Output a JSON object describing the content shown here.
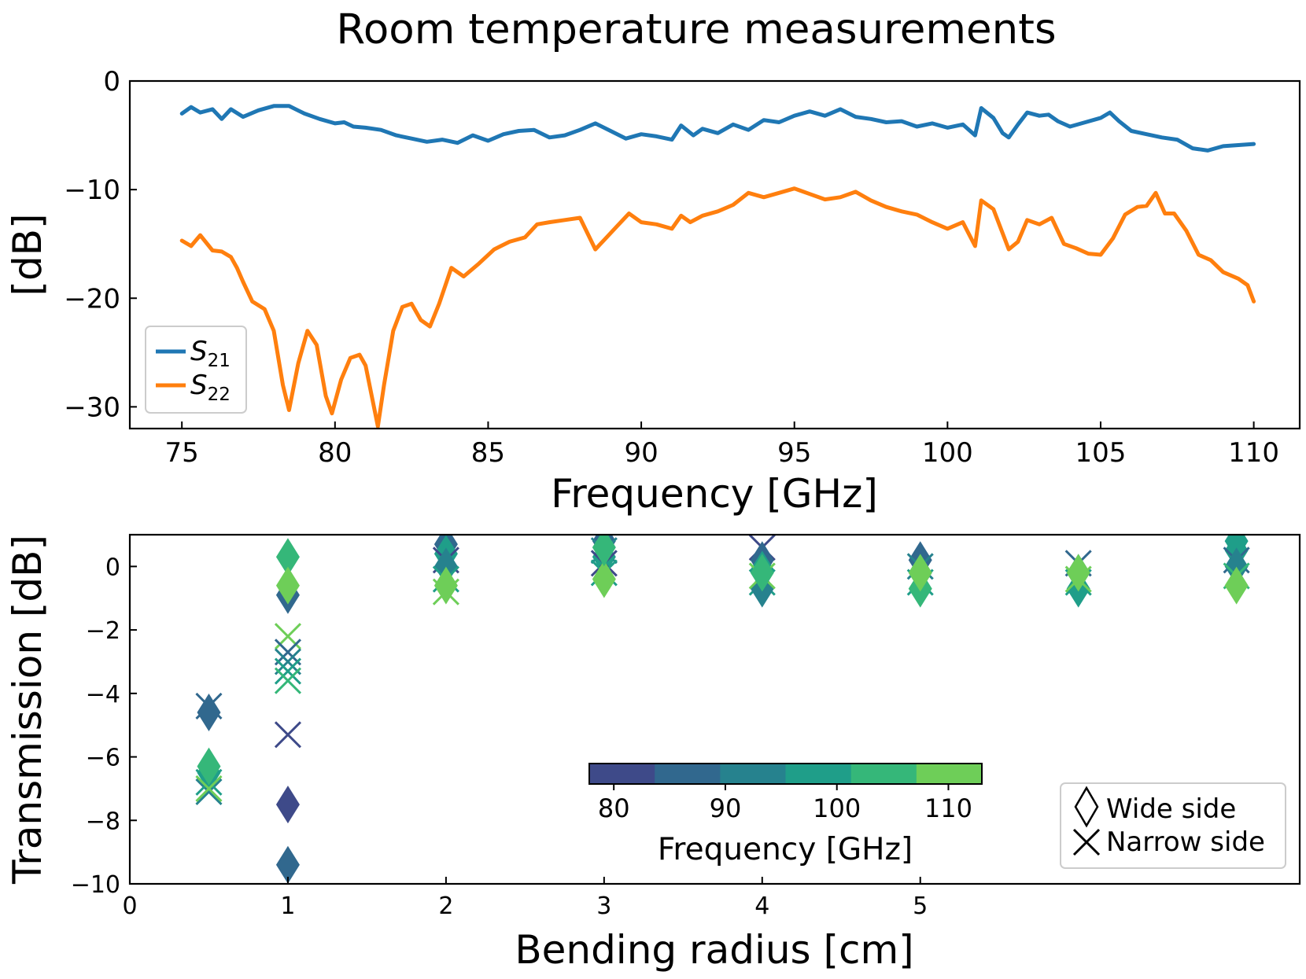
{
  "figure": {
    "title": "Room temperature measurements"
  },
  "chart_data": [
    {
      "type": "line",
      "xlabel": "Frequency [GHz]",
      "ylabel": "[dB]",
      "xlim": [
        73.3,
        111.5
      ],
      "ylim": [
        -32,
        0
      ],
      "xticks": [
        75,
        80,
        85,
        90,
        95,
        100,
        105,
        110
      ],
      "yticks": [
        0,
        -10,
        -20,
        -30
      ],
      "legend": {
        "placement": "lower-left"
      },
      "series": [
        {
          "name": "S21",
          "label_main": "S",
          "label_sub": "21",
          "color": "#1f77b4",
          "points": [
            [
              75,
              -3.0
            ],
            [
              75.3,
              -2.4
            ],
            [
              75.6,
              -2.9
            ],
            [
              76,
              -2.6
            ],
            [
              76.3,
              -3.5
            ],
            [
              76.6,
              -2.6
            ],
            [
              77,
              -3.3
            ],
            [
              77.5,
              -2.7
            ],
            [
              78,
              -2.3
            ],
            [
              78.5,
              -2.3
            ],
            [
              79,
              -3.0
            ],
            [
              79.5,
              -3.5
            ],
            [
              80,
              -3.9
            ],
            [
              80.3,
              -3.8
            ],
            [
              80.6,
              -4.2
            ],
            [
              81,
              -4.3
            ],
            [
              81.5,
              -4.5
            ],
            [
              82,
              -5.0
            ],
            [
              82.5,
              -5.3
            ],
            [
              83,
              -5.6
            ],
            [
              83.5,
              -5.4
            ],
            [
              84,
              -5.7
            ],
            [
              84.5,
              -5.0
            ],
            [
              85,
              -5.5
            ],
            [
              85.5,
              -4.9
            ],
            [
              86,
              -4.6
            ],
            [
              86.5,
              -4.5
            ],
            [
              87,
              -5.2
            ],
            [
              87.5,
              -5.0
            ],
            [
              88,
              -4.5
            ],
            [
              88.5,
              -3.9
            ],
            [
              89,
              -4.6
            ],
            [
              89.5,
              -5.3
            ],
            [
              90,
              -4.9
            ],
            [
              90.5,
              -5.1
            ],
            [
              91,
              -5.4
            ],
            [
              91.3,
              -4.1
            ],
            [
              91.7,
              -5.0
            ],
            [
              92,
              -4.4
            ],
            [
              92.5,
              -4.8
            ],
            [
              93,
              -4.0
            ],
            [
              93.5,
              -4.5
            ],
            [
              94,
              -3.6
            ],
            [
              94.5,
              -3.8
            ],
            [
              95,
              -3.2
            ],
            [
              95.5,
              -2.8
            ],
            [
              96,
              -3.2
            ],
            [
              96.5,
              -2.6
            ],
            [
              97,
              -3.3
            ],
            [
              97.5,
              -3.5
            ],
            [
              98,
              -3.8
            ],
            [
              98.5,
              -3.7
            ],
            [
              99,
              -4.2
            ],
            [
              99.5,
              -3.9
            ],
            [
              100,
              -4.3
            ],
            [
              100.5,
              -4.0
            ],
            [
              100.9,
              -5.0
            ],
            [
              101.1,
              -2.5
            ],
            [
              101.5,
              -3.4
            ],
            [
              101.8,
              -4.8
            ],
            [
              102,
              -5.2
            ],
            [
              102.3,
              -4.0
            ],
            [
              102.6,
              -2.9
            ],
            [
              103,
              -3.2
            ],
            [
              103.3,
              -3.1
            ],
            [
              103.6,
              -3.7
            ],
            [
              104,
              -4.2
            ],
            [
              104.5,
              -3.8
            ],
            [
              105,
              -3.4
            ],
            [
              105.3,
              -2.9
            ],
            [
              105.6,
              -3.7
            ],
            [
              106,
              -4.6
            ],
            [
              106.5,
              -4.9
            ],
            [
              107,
              -5.2
            ],
            [
              107.5,
              -5.4
            ],
            [
              108,
              -6.2
            ],
            [
              108.5,
              -6.4
            ],
            [
              109,
              -6.0
            ],
            [
              109.5,
              -5.9
            ],
            [
              110,
              -5.8
            ]
          ]
        },
        {
          "name": "S22",
          "label_main": "S",
          "label_sub": "22",
          "color": "#ff7f0e",
          "points": [
            [
              75,
              -14.7
            ],
            [
              75.3,
              -15.2
            ],
            [
              75.6,
              -14.2
            ],
            [
              76,
              -15.6
            ],
            [
              76.3,
              -15.7
            ],
            [
              76.6,
              -16.2
            ],
            [
              76.8,
              -17.2
            ],
            [
              77,
              -18.5
            ],
            [
              77.3,
              -20.3
            ],
            [
              77.7,
              -21.0
            ],
            [
              78,
              -23.0
            ],
            [
              78.3,
              -28.0
            ],
            [
              78.5,
              -30.3
            ],
            [
              78.8,
              -26.0
            ],
            [
              79.1,
              -23.0
            ],
            [
              79.4,
              -24.3
            ],
            [
              79.7,
              -29.0
            ],
            [
              79.9,
              -30.6
            ],
            [
              80.2,
              -27.5
            ],
            [
              80.5,
              -25.5
            ],
            [
              80.8,
              -25.2
            ],
            [
              81.0,
              -26.2
            ],
            [
              81.2,
              -29.0
            ],
            [
              81.4,
              -31.8
            ],
            [
              81.6,
              -28.0
            ],
            [
              81.9,
              -23.0
            ],
            [
              82.2,
              -20.8
            ],
            [
              82.5,
              -20.5
            ],
            [
              82.8,
              -22.0
            ],
            [
              83.1,
              -22.6
            ],
            [
              83.4,
              -20.5
            ],
            [
              83.8,
              -17.2
            ],
            [
              84.2,
              -18.0
            ],
            [
              84.7,
              -16.8
            ],
            [
              85.2,
              -15.5
            ],
            [
              85.7,
              -14.8
            ],
            [
              86.2,
              -14.4
            ],
            [
              86.6,
              -13.2
            ],
            [
              87,
              -13.0
            ],
            [
              87.5,
              -12.8
            ],
            [
              88,
              -12.6
            ],
            [
              88.5,
              -15.5
            ],
            [
              88.8,
              -14.6
            ],
            [
              89.2,
              -13.4
            ],
            [
              89.6,
              -12.2
            ],
            [
              90,
              -13.0
            ],
            [
              90.5,
              -13.2
            ],
            [
              91,
              -13.6
            ],
            [
              91.3,
              -12.4
            ],
            [
              91.6,
              -13.0
            ],
            [
              92,
              -12.4
            ],
            [
              92.5,
              -12.0
            ],
            [
              93,
              -11.4
            ],
            [
              93.5,
              -10.3
            ],
            [
              94,
              -10.7
            ],
            [
              94.5,
              -10.3
            ],
            [
              95,
              -9.9
            ],
            [
              95.5,
              -10.4
            ],
            [
              96,
              -10.9
            ],
            [
              96.5,
              -10.7
            ],
            [
              97,
              -10.2
            ],
            [
              97.5,
              -11.0
            ],
            [
              98,
              -11.6
            ],
            [
              98.5,
              -12.0
            ],
            [
              99,
              -12.3
            ],
            [
              99.5,
              -13.0
            ],
            [
              100,
              -13.6
            ],
            [
              100.5,
              -13.0
            ],
            [
              100.9,
              -15.2
            ],
            [
              101.1,
              -11.0
            ],
            [
              101.5,
              -11.8
            ],
            [
              102,
              -15.5
            ],
            [
              102.3,
              -14.8
            ],
            [
              102.6,
              -12.8
            ],
            [
              103,
              -13.2
            ],
            [
              103.4,
              -12.6
            ],
            [
              103.8,
              -15.0
            ],
            [
              104.2,
              -15.4
            ],
            [
              104.6,
              -15.9
            ],
            [
              105,
              -16.0
            ],
            [
              105.4,
              -14.5
            ],
            [
              105.8,
              -12.3
            ],
            [
              106.2,
              -11.6
            ],
            [
              106.5,
              -11.5
            ],
            [
              106.8,
              -10.3
            ],
            [
              107.1,
              -12.2
            ],
            [
              107.4,
              -12.2
            ],
            [
              107.8,
              -13.8
            ],
            [
              108.2,
              -16.0
            ],
            [
              108.6,
              -16.5
            ],
            [
              109,
              -17.6
            ],
            [
              109.5,
              -18.2
            ],
            [
              109.8,
              -18.8
            ],
            [
              110,
              -20.3
            ]
          ]
        }
      ]
    },
    {
      "type": "scatter",
      "xlabel": "Bending radius [cm]",
      "ylabel": "Transmission [dB]",
      "xlim": [
        0,
        7.4
      ],
      "ylim": [
        -10,
        1
      ],
      "xticks": [
        0,
        1,
        2,
        3,
        4,
        5
      ],
      "yticks": [
        0,
        -2,
        -4,
        -6,
        -8,
        -10
      ],
      "colorbar": {
        "label": "Frequency [GHz]",
        "range": [
          77.8,
          113.0
        ],
        "ticks": [
          80,
          90,
          100,
          110
        ],
        "colors": [
          "#3e4a89",
          "#31688e",
          "#26828e",
          "#1f9e89",
          "#35b779",
          "#6ece58"
        ]
      },
      "legend": {
        "placement": "lower-right",
        "entries": [
          {
            "marker": "diamond",
            "label": "Wide side"
          },
          {
            "marker": "x",
            "label": "Narrow side"
          }
        ]
      },
      "points": [
        {
          "x": 0.5,
          "y": -4.4,
          "f": 85,
          "m": "x"
        },
        {
          "x": 0.5,
          "y": -4.6,
          "f": 88,
          "m": "diamond"
        },
        {
          "x": 0.5,
          "y": -7.1,
          "f": 90,
          "m": "x"
        },
        {
          "x": 0.5,
          "y": -6.8,
          "f": 100,
          "m": "x"
        },
        {
          "x": 0.5,
          "y": -6.5,
          "f": 96,
          "m": "diamond"
        },
        {
          "x": 0.5,
          "y": -6.3,
          "f": 106,
          "m": "diamond"
        },
        {
          "x": 0.5,
          "y": -7.0,
          "f": 108,
          "m": "x"
        },
        {
          "x": 1,
          "y": 0.3,
          "f": 106,
          "m": "diamond"
        },
        {
          "x": 1,
          "y": -0.9,
          "f": 88,
          "m": "diamond"
        },
        {
          "x": 1,
          "y": -0.6,
          "f": 108,
          "m": "diamond"
        },
        {
          "x": 1,
          "y": -2.2,
          "f": 110,
          "m": "x"
        },
        {
          "x": 1,
          "y": -2.7,
          "f": 84,
          "m": "x"
        },
        {
          "x": 1,
          "y": -3.0,
          "f": 95,
          "m": "x"
        },
        {
          "x": 1,
          "y": -3.3,
          "f": 100,
          "m": "x"
        },
        {
          "x": 1,
          "y": -3.6,
          "f": 103,
          "m": "x"
        },
        {
          "x": 1,
          "y": -5.3,
          "f": 80,
          "m": "x"
        },
        {
          "x": 1,
          "y": -7.5,
          "f": 80,
          "m": "diamond"
        },
        {
          "x": 1,
          "y": -9.4,
          "f": 87,
          "m": "diamond"
        },
        {
          "x": 2,
          "y": 0.7,
          "f": 88,
          "m": "diamond"
        },
        {
          "x": 2,
          "y": 0.4,
          "f": 96,
          "m": "diamond"
        },
        {
          "x": 2,
          "y": 0.2,
          "f": 80,
          "m": "x"
        },
        {
          "x": 2,
          "y": 0.0,
          "f": 92,
          "m": "diamond"
        },
        {
          "x": 2,
          "y": -0.4,
          "f": 100,
          "m": "x"
        },
        {
          "x": 2,
          "y": -0.8,
          "f": 110,
          "m": "x"
        },
        {
          "x": 2,
          "y": -0.6,
          "f": 108,
          "m": "diamond"
        },
        {
          "x": 3,
          "y": 0.8,
          "f": 84,
          "m": "diamond"
        },
        {
          "x": 3,
          "y": 0.5,
          "f": 90,
          "m": "x"
        },
        {
          "x": 3,
          "y": 0.3,
          "f": 96,
          "m": "diamond"
        },
        {
          "x": 3,
          "y": 0.1,
          "f": 80,
          "m": "x"
        },
        {
          "x": 3,
          "y": -0.2,
          "f": 100,
          "m": "x"
        },
        {
          "x": 3,
          "y": -0.4,
          "f": 110,
          "m": "diamond"
        },
        {
          "x": 3,
          "y": 0.6,
          "f": 104,
          "m": "diamond"
        },
        {
          "x": 4,
          "y": 0.6,
          "f": 80,
          "m": "x"
        },
        {
          "x": 4,
          "y": 0.2,
          "f": 88,
          "m": "diamond"
        },
        {
          "x": 4,
          "y": -0.1,
          "f": 96,
          "m": "diamond"
        },
        {
          "x": 4,
          "y": -0.5,
          "f": 100,
          "m": "x"
        },
        {
          "x": 4,
          "y": -0.7,
          "f": 94,
          "m": "diamond"
        },
        {
          "x": 4,
          "y": -0.3,
          "f": 110,
          "m": "x"
        },
        {
          "x": 4,
          "y": -0.2,
          "f": 106,
          "m": "diamond"
        },
        {
          "x": 5,
          "y": 0.2,
          "f": 84,
          "m": "diamond"
        },
        {
          "x": 5,
          "y": 0.0,
          "f": 90,
          "m": "x"
        },
        {
          "x": 5,
          "y": -0.2,
          "f": 100,
          "m": "diamond"
        },
        {
          "x": 5,
          "y": -0.5,
          "f": 96,
          "m": "x"
        },
        {
          "x": 5,
          "y": -0.7,
          "f": 104,
          "m": "diamond"
        },
        {
          "x": 5,
          "y": -0.2,
          "f": 110,
          "m": "diamond"
        },
        {
          "x": 6,
          "y": 0.1,
          "f": 84,
          "m": "x"
        },
        {
          "x": 6,
          "y": -0.2,
          "f": 92,
          "m": "diamond"
        },
        {
          "x": 6,
          "y": -0.5,
          "f": 100,
          "m": "x"
        },
        {
          "x": 6,
          "y": -0.7,
          "f": 96,
          "m": "diamond"
        },
        {
          "x": 6,
          "y": -0.2,
          "f": 108,
          "m": "diamond"
        },
        {
          "x": 6,
          "y": -0.4,
          "f": 110,
          "m": "x"
        },
        {
          "x": 7,
          "y": 0.8,
          "f": 100,
          "m": "diamond"
        },
        {
          "x": 7,
          "y": 0.5,
          "f": 96,
          "m": "diamond"
        },
        {
          "x": 7,
          "y": 0.2,
          "f": 84,
          "m": "x"
        },
        {
          "x": 7,
          "y": 0.0,
          "f": 90,
          "m": "diamond"
        },
        {
          "x": 7,
          "y": -0.3,
          "f": 104,
          "m": "x"
        },
        {
          "x": 7,
          "y": -0.6,
          "f": 110,
          "m": "diamond"
        }
      ]
    }
  ]
}
